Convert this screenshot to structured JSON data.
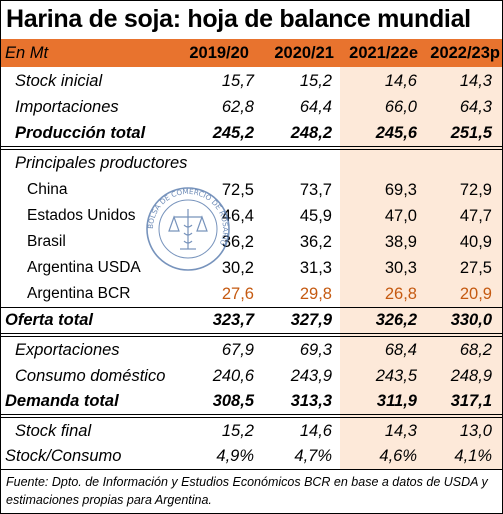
{
  "title": "Harina de soja: hoja de balance mundial",
  "header": {
    "unit": "En Mt",
    "years": [
      "2019/20",
      "2020/21",
      "2021/22e",
      "2022/23p"
    ]
  },
  "rows": [
    {
      "label": "Stock inicial",
      "values": [
        "15,7",
        "15,2",
        "14,6",
        "14,3"
      ]
    },
    {
      "label": "Importaciones",
      "values": [
        "62,8",
        "64,4",
        "66,0",
        "64,3"
      ]
    },
    {
      "label": "Producción total",
      "values": [
        "245,2",
        "248,2",
        "245,6",
        "251,5"
      ]
    },
    {
      "label": "Principales productores",
      "values": []
    },
    {
      "label": "China",
      "values": [
        "72,5",
        "73,7",
        "69,3",
        "72,9"
      ]
    },
    {
      "label": "Estados Unidos",
      "values": [
        "46,4",
        "45,9",
        "47,0",
        "47,7"
      ]
    },
    {
      "label": "Brasil",
      "values": [
        "36,2",
        "36,2",
        "38,9",
        "40,9"
      ]
    },
    {
      "label": "Argentina USDA",
      "values": [
        "30,2",
        "31,3",
        "30,3",
        "27,5"
      ]
    },
    {
      "label": "Argentina BCR",
      "values": [
        "27,6",
        "29,8",
        "26,8",
        "20,9"
      ]
    },
    {
      "label": "Oferta total",
      "values": [
        "323,7",
        "327,9",
        "326,2",
        "330,0"
      ]
    },
    {
      "label": "Exportaciones",
      "values": [
        "67,9",
        "69,3",
        "68,4",
        "68,2"
      ]
    },
    {
      "label": "Consumo doméstico",
      "values": [
        "240,6",
        "243,9",
        "243,5",
        "248,9"
      ]
    },
    {
      "label": "Demanda total",
      "values": [
        "308,5",
        "313,3",
        "311,9",
        "317,1"
      ]
    },
    {
      "label": "Stock final",
      "values": [
        "15,2",
        "14,6",
        "14,3",
        "13,0"
      ]
    },
    {
      "label": "Stock/Consumo",
      "values": [
        "4,9%",
        "4,7%",
        "4,6%",
        "4,1%"
      ]
    }
  ],
  "footnote": "Fuente: Dpto. de Información y Estudios Económicos BCR en base a datos de USDA y estimaciones propias para Argentina.",
  "seal_text": "BOLSA DE COMERCIO DE ROSARIO",
  "colors": {
    "header": "#e8732e",
    "projection_shade": "#fde9d9",
    "bcr_values": "#c55a11"
  }
}
